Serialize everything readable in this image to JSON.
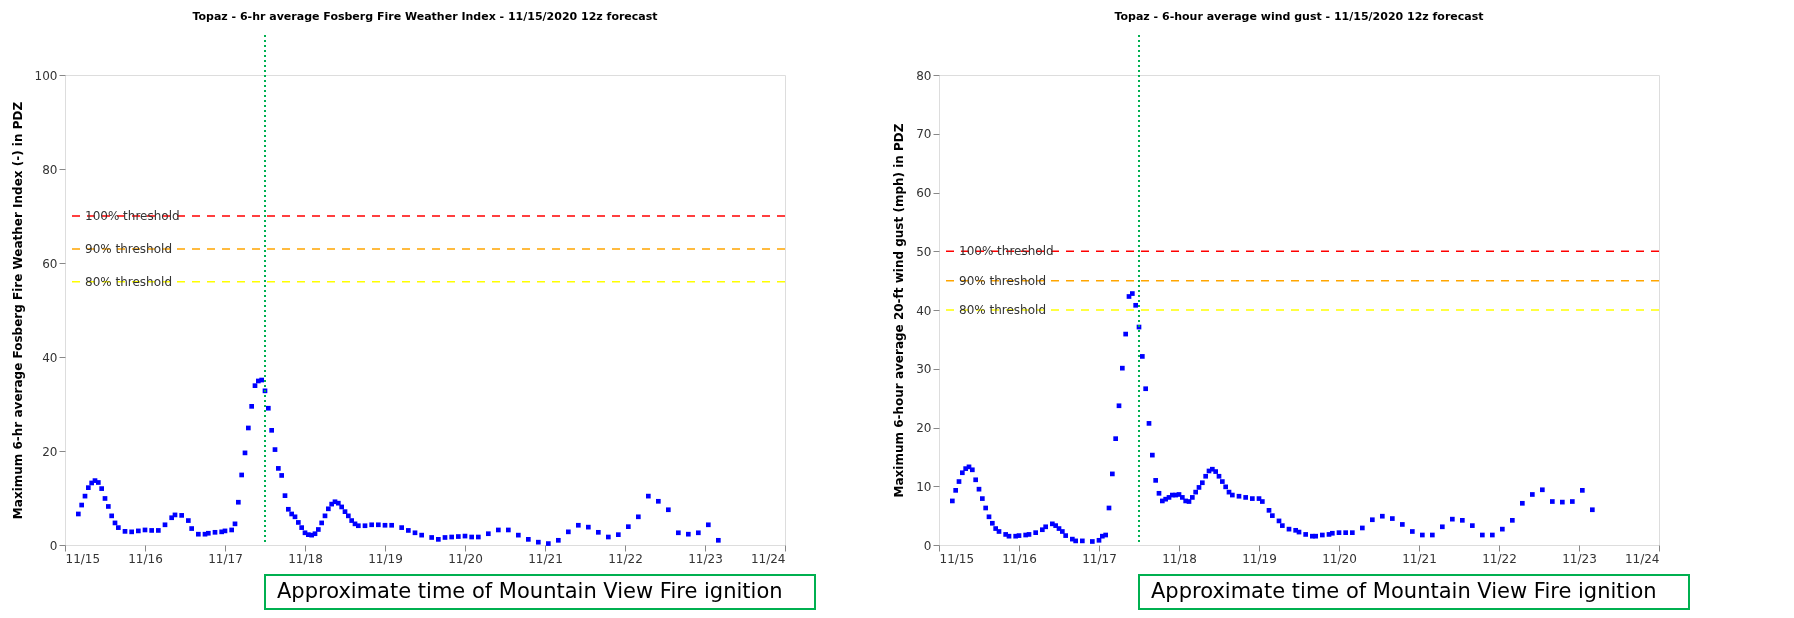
{
  "chart_data": [
    {
      "type": "scatter",
      "title": "Topaz - 6-hr average Fosberg Fire Weather Index - 11/15/2020 12z forecast",
      "ylabel": "Maximum 6-hr average Fosberg Fire Weather Index (-) in PDZ",
      "marker": "square",
      "grid": false,
      "xlim": [
        "2020-11-15",
        "2020-11-24"
      ],
      "xticks": [
        {
          "value": "2020-11-15",
          "label": "11/15"
        },
        {
          "value": "2020-11-16",
          "label": "11/16"
        },
        {
          "value": "2020-11-17",
          "label": "11/17"
        },
        {
          "value": "2020-11-18",
          "label": "11/18"
        },
        {
          "value": "2020-11-19",
          "label": "11/19"
        },
        {
          "value": "2020-11-20",
          "label": "11/20"
        },
        {
          "value": "2020-11-21",
          "label": "11/21"
        },
        {
          "value": "2020-11-22",
          "label": "11/22"
        },
        {
          "value": "2020-11-23",
          "label": "11/23"
        },
        {
          "value": "2020-11-24",
          "label": "11/24"
        }
      ],
      "ylim": [
        0,
        100
      ],
      "yticks": [
        0,
        20,
        40,
        60,
        80,
        100
      ],
      "ref_lines": [
        {
          "axis": "y",
          "value": 70,
          "label": "100% threshold",
          "color": "#ff0000",
          "line_style": "dashed"
        },
        {
          "axis": "y",
          "value": 63,
          "label": "90% threshold",
          "color": "#ffa500",
          "line_style": "dashed"
        },
        {
          "axis": "y",
          "value": 56,
          "label": "80% threshold",
          "color": "#ffff00",
          "line_style": "dashed"
        },
        {
          "axis": "x",
          "value": "2020-11-17T12:00",
          "label": "Approximate time of Mountain View Fire ignition",
          "color": "#00b050",
          "line_style": "dotted"
        }
      ],
      "series": [
        {
          "color": "#0000ff",
          "x": [
            "2020-11-15T04:00",
            "2020-11-15T05:00",
            "2020-11-15T06:00",
            "2020-11-15T07:00",
            "2020-11-15T08:00",
            "2020-11-15T09:00",
            "2020-11-15T10:00",
            "2020-11-15T11:00",
            "2020-11-15T12:00",
            "2020-11-15T13:00",
            "2020-11-15T14:00",
            "2020-11-15T15:00",
            "2020-11-15T16:00",
            "2020-11-15T18:00",
            "2020-11-15T20:00",
            "2020-11-15T22:00",
            "2020-11-16T00:00",
            "2020-11-16T02:00",
            "2020-11-16T04:00",
            "2020-11-16T06:00",
            "2020-11-16T08:00",
            "2020-11-16T09:00",
            "2020-11-16T11:00",
            "2020-11-16T13:00",
            "2020-11-16T14:00",
            "2020-11-16T16:00",
            "2020-11-16T18:00",
            "2020-11-16T19:00",
            "2020-11-16T21:00",
            "2020-11-16T23:00",
            "2020-11-17T00:00",
            "2020-11-17T02:00",
            "2020-11-17T03:00",
            "2020-11-17T04:00",
            "2020-11-17T05:00",
            "2020-11-17T06:00",
            "2020-11-17T07:00",
            "2020-11-17T08:00",
            "2020-11-17T09:00",
            "2020-11-17T10:00",
            "2020-11-17T11:00",
            "2020-11-17T12:00",
            "2020-11-17T13:00",
            "2020-11-17T14:00",
            "2020-11-17T15:00",
            "2020-11-17T16:00",
            "2020-11-17T17:00",
            "2020-11-17T18:00",
            "2020-11-17T19:00",
            "2020-11-17T20:00",
            "2020-11-17T21:00",
            "2020-11-17T22:00",
            "2020-11-17T23:00",
            "2020-11-18T00:00",
            "2020-11-18T01:00",
            "2020-11-18T02:00",
            "2020-11-18T03:00",
            "2020-11-18T04:00",
            "2020-11-18T05:00",
            "2020-11-18T06:00",
            "2020-11-18T07:00",
            "2020-11-18T08:00",
            "2020-11-18T09:00",
            "2020-11-18T10:00",
            "2020-11-18T11:00",
            "2020-11-18T12:00",
            "2020-11-18T13:00",
            "2020-11-18T14:00",
            "2020-11-18T15:00",
            "2020-11-18T16:00",
            "2020-11-18T18:00",
            "2020-11-18T20:00",
            "2020-11-18T22:00",
            "2020-11-19T00:00",
            "2020-11-19T02:00",
            "2020-11-19T05:00",
            "2020-11-19T07:00",
            "2020-11-19T09:00",
            "2020-11-19T11:00",
            "2020-11-19T14:00",
            "2020-11-19T16:00",
            "2020-11-19T18:00",
            "2020-11-19T20:00",
            "2020-11-19T22:00",
            "2020-11-20T00:00",
            "2020-11-20T02:00",
            "2020-11-20T04:00",
            "2020-11-20T07:00",
            "2020-11-20T10:00",
            "2020-11-20T13:00",
            "2020-11-20T16:00",
            "2020-11-20T19:00",
            "2020-11-20T22:00",
            "2020-11-21T01:00",
            "2020-11-21T04:00",
            "2020-11-21T07:00",
            "2020-11-21T10:00",
            "2020-11-21T13:00",
            "2020-11-21T16:00",
            "2020-11-21T19:00",
            "2020-11-21T22:00",
            "2020-11-22T01:00",
            "2020-11-22T04:00",
            "2020-11-22T07:00",
            "2020-11-22T10:00",
            "2020-11-22T13:00",
            "2020-11-22T16:00",
            "2020-11-22T19:00",
            "2020-11-22T22:00",
            "2020-11-23T01:00",
            "2020-11-23T04:00"
          ],
          "values": [
            6.6,
            8.5,
            10.4,
            12.2,
            13.2,
            13.7,
            13.3,
            12,
            9.9,
            8.2,
            6.2,
            4.7,
            3.7,
            2.9,
            2.8,
            3.0,
            3.2,
            3.1,
            3.1,
            4.3,
            5.8,
            6.4,
            6.3,
            5.2,
            3.5,
            2.3,
            2.3,
            2.5,
            2.7,
            2.8,
            3.0,
            3.2,
            4.5,
            9.1,
            14.9,
            19.6,
            24.9,
            29.5,
            33.9,
            34.9,
            35.1,
            32.8,
            29.1,
            24.4,
            20.3,
            16.3,
            14.8,
            10.5,
            7.6,
            6.6,
            6.0,
            4.8,
            3.7,
            2.6,
            2.2,
            2.1,
            2.4,
            3.3,
            4.7,
            6.2,
            7.7,
            8.7,
            9.2,
            8.9,
            8.1,
            7.1,
            6.2,
            5.2,
            4.5,
            4.1,
            4.1,
            4.3,
            4.3,
            4.2,
            4.2,
            3.7,
            3.1,
            2.6,
            2.1,
            1.6,
            1.2,
            1.6,
            1.7,
            1.8,
            1.9,
            1.7,
            1.7,
            2.4,
            3.2,
            3.2,
            2.1,
            1.2,
            0.6,
            0.3,
            1.0,
            2.8,
            4.2,
            3.8,
            2.7,
            1.7,
            2.2,
            3.9,
            6.0,
            10.4,
            9.3,
            7.5,
            2.6,
            2.3,
            2.6,
            4.3,
            1.0
          ]
        }
      ]
    },
    {
      "type": "scatter",
      "title": "Topaz - 6-hour average wind gust - 11/15/2020 12z forecast",
      "ylabel": "Maximum 6-hour average 20-ft wind gust (mph) in PDZ",
      "marker": "square",
      "grid": false,
      "xlim": [
        "2020-11-15",
        "2020-11-24"
      ],
      "xticks": [
        {
          "value": "2020-11-15",
          "label": "11/15"
        },
        {
          "value": "2020-11-16",
          "label": "11/16"
        },
        {
          "value": "2020-11-17",
          "label": "11/17"
        },
        {
          "value": "2020-11-18",
          "label": "11/18"
        },
        {
          "value": "2020-11-19",
          "label": "11/19"
        },
        {
          "value": "2020-11-20",
          "label": "11/20"
        },
        {
          "value": "2020-11-21",
          "label": "11/21"
        },
        {
          "value": "2020-11-22",
          "label": "11/22"
        },
        {
          "value": "2020-11-23",
          "label": "11/23"
        },
        {
          "value": "2020-11-24",
          "label": "11/24"
        }
      ],
      "ylim": [
        0,
        80
      ],
      "yticks": [
        0,
        10,
        20,
        30,
        40,
        50,
        60,
        70,
        80
      ],
      "ref_lines": [
        {
          "axis": "y",
          "value": 50,
          "label": "100% threshold",
          "color": "#ff0000",
          "line_style": "dashed"
        },
        {
          "axis": "y",
          "value": 45,
          "label": "90% threshold",
          "color": "#ffa500",
          "line_style": "dashed"
        },
        {
          "axis": "y",
          "value": 40,
          "label": "80% threshold",
          "color": "#ffff00",
          "line_style": "dashed"
        },
        {
          "axis": "x",
          "value": "2020-11-17T12:00",
          "label": "Approximate time of Mountain View Fire ignition",
          "color": "#00b050",
          "line_style": "dotted"
        }
      ],
      "series": [
        {
          "color": "#0000ff",
          "x": [
            "2020-11-15T04:00",
            "2020-11-15T05:00",
            "2020-11-15T06:00",
            "2020-11-15T07:00",
            "2020-11-15T08:00",
            "2020-11-15T09:00",
            "2020-11-15T10:00",
            "2020-11-15T11:00",
            "2020-11-15T12:00",
            "2020-11-15T13:00",
            "2020-11-15T14:00",
            "2020-11-15T15:00",
            "2020-11-15T16:00",
            "2020-11-15T17:00",
            "2020-11-15T18:00",
            "2020-11-15T20:00",
            "2020-11-15T21:00",
            "2020-11-15T23:00",
            "2020-11-16T00:00",
            "2020-11-16T02:00",
            "2020-11-16T03:00",
            "2020-11-16T05:00",
            "2020-11-16T07:00",
            "2020-11-16T08:00",
            "2020-11-16T10:00",
            "2020-11-16T11:00",
            "2020-11-16T12:00",
            "2020-11-16T13:00",
            "2020-11-16T14:00",
            "2020-11-16T16:00",
            "2020-11-16T17:00",
            "2020-11-16T19:00",
            "2020-11-16T22:00",
            "2020-11-17T00:00",
            "2020-11-17T01:00",
            "2020-11-17T02:00",
            "2020-11-17T03:00",
            "2020-11-17T04:00",
            "2020-11-17T05:00",
            "2020-11-17T06:00",
            "2020-11-17T07:00",
            "2020-11-17T08:00",
            "2020-11-17T09:00",
            "2020-11-17T10:00",
            "2020-11-17T11:00",
            "2020-11-17T12:00",
            "2020-11-17T13:00",
            "2020-11-17T14:00",
            "2020-11-17T15:00",
            "2020-11-17T16:00",
            "2020-11-17T17:00",
            "2020-11-17T18:00",
            "2020-11-17T19:00",
            "2020-11-17T20:00",
            "2020-11-17T21:00",
            "2020-11-17T22:00",
            "2020-11-17T23:00",
            "2020-11-18T00:00",
            "2020-11-18T01:00",
            "2020-11-18T02:00",
            "2020-11-18T03:00",
            "2020-11-18T04:00",
            "2020-11-18T05:00",
            "2020-11-18T06:00",
            "2020-11-18T07:00",
            "2020-11-18T08:00",
            "2020-11-18T09:00",
            "2020-11-18T10:00",
            "2020-11-18T11:00",
            "2020-11-18T12:00",
            "2020-11-18T13:00",
            "2020-11-18T14:00",
            "2020-11-18T15:00",
            "2020-11-18T16:00",
            "2020-11-18T18:00",
            "2020-11-18T20:00",
            "2020-11-18T22:00",
            "2020-11-19T00:00",
            "2020-11-19T01:00",
            "2020-11-19T03:00",
            "2020-11-19T04:00",
            "2020-11-19T06:00",
            "2020-11-19T07:00",
            "2020-11-19T09:00",
            "2020-11-19T11:00",
            "2020-11-19T12:00",
            "2020-11-19T14:00",
            "2020-11-19T16:00",
            "2020-11-19T17:00",
            "2020-11-19T19:00",
            "2020-11-19T21:00",
            "2020-11-19T22:00",
            "2020-11-20T00:00",
            "2020-11-20T02:00",
            "2020-11-20T04:00",
            "2020-11-20T07:00",
            "2020-11-20T10:00",
            "2020-11-20T13:00",
            "2020-11-20T16:00",
            "2020-11-20T19:00",
            "2020-11-20T22:00",
            "2020-11-21T01:00",
            "2020-11-21T04:00",
            "2020-11-21T07:00",
            "2020-11-21T10:00",
            "2020-11-21T13:00",
            "2020-11-21T16:00",
            "2020-11-21T19:00",
            "2020-11-21T22:00",
            "2020-11-22T01:00",
            "2020-11-22T04:00",
            "2020-11-22T07:00",
            "2020-11-22T10:00",
            "2020-11-22T13:00",
            "2020-11-22T16:00",
            "2020-11-22T19:00",
            "2020-11-22T22:00",
            "2020-11-23T01:00",
            "2020-11-23T04:00"
          ],
          "values": [
            7.5,
            9.3,
            10.8,
            12.3,
            13.0,
            13.3,
            12.8,
            11.1,
            9.5,
            7.9,
            6.3,
            4.8,
            3.7,
            2.8,
            2.3,
            1.8,
            1.5,
            1.5,
            1.6,
            1.7,
            1.8,
            2.1,
            2.6,
            3.1,
            3.6,
            3.3,
            2.8,
            2.3,
            1.6,
            1.0,
            0.7,
            0.7,
            0.6,
            0.8,
            1.5,
            1.7,
            6.3,
            12.1,
            18.1,
            23.7,
            30.1,
            35.9,
            42.3,
            42.8,
            40.8,
            37.1,
            32.1,
            26.6,
            20.7,
            15.3,
            11.0,
            8.8,
            7.5,
            7.8,
            8.1,
            8.5,
            8.5,
            8.6,
            8.1,
            7.5,
            7.4,
            8.1,
            9.0,
            9.8,
            10.6,
            11.7,
            12.6,
            12.9,
            12.5,
            11.7,
            10.8,
            9.9,
            9.0,
            8.5,
            8.3,
            8.1,
            7.9,
            7.9,
            7.4,
            5.9,
            5.0,
            4.1,
            3.3,
            2.7,
            2.5,
            2.2,
            1.8,
            1.5,
            1.5,
            1.7,
            1.8,
            2.0,
            2.1,
            2.1,
            2.1,
            2.9,
            4.3,
            4.9,
            4.5,
            3.5,
            2.3,
            1.7,
            1.7,
            3.1,
            4.4,
            4.2,
            3.3,
            1.7,
            1.7,
            2.7,
            4.2,
            7.1,
            8.6,
            9.4,
            7.4,
            7.3,
            7.4,
            9.3,
            6.0
          ]
        }
      ]
    }
  ]
}
